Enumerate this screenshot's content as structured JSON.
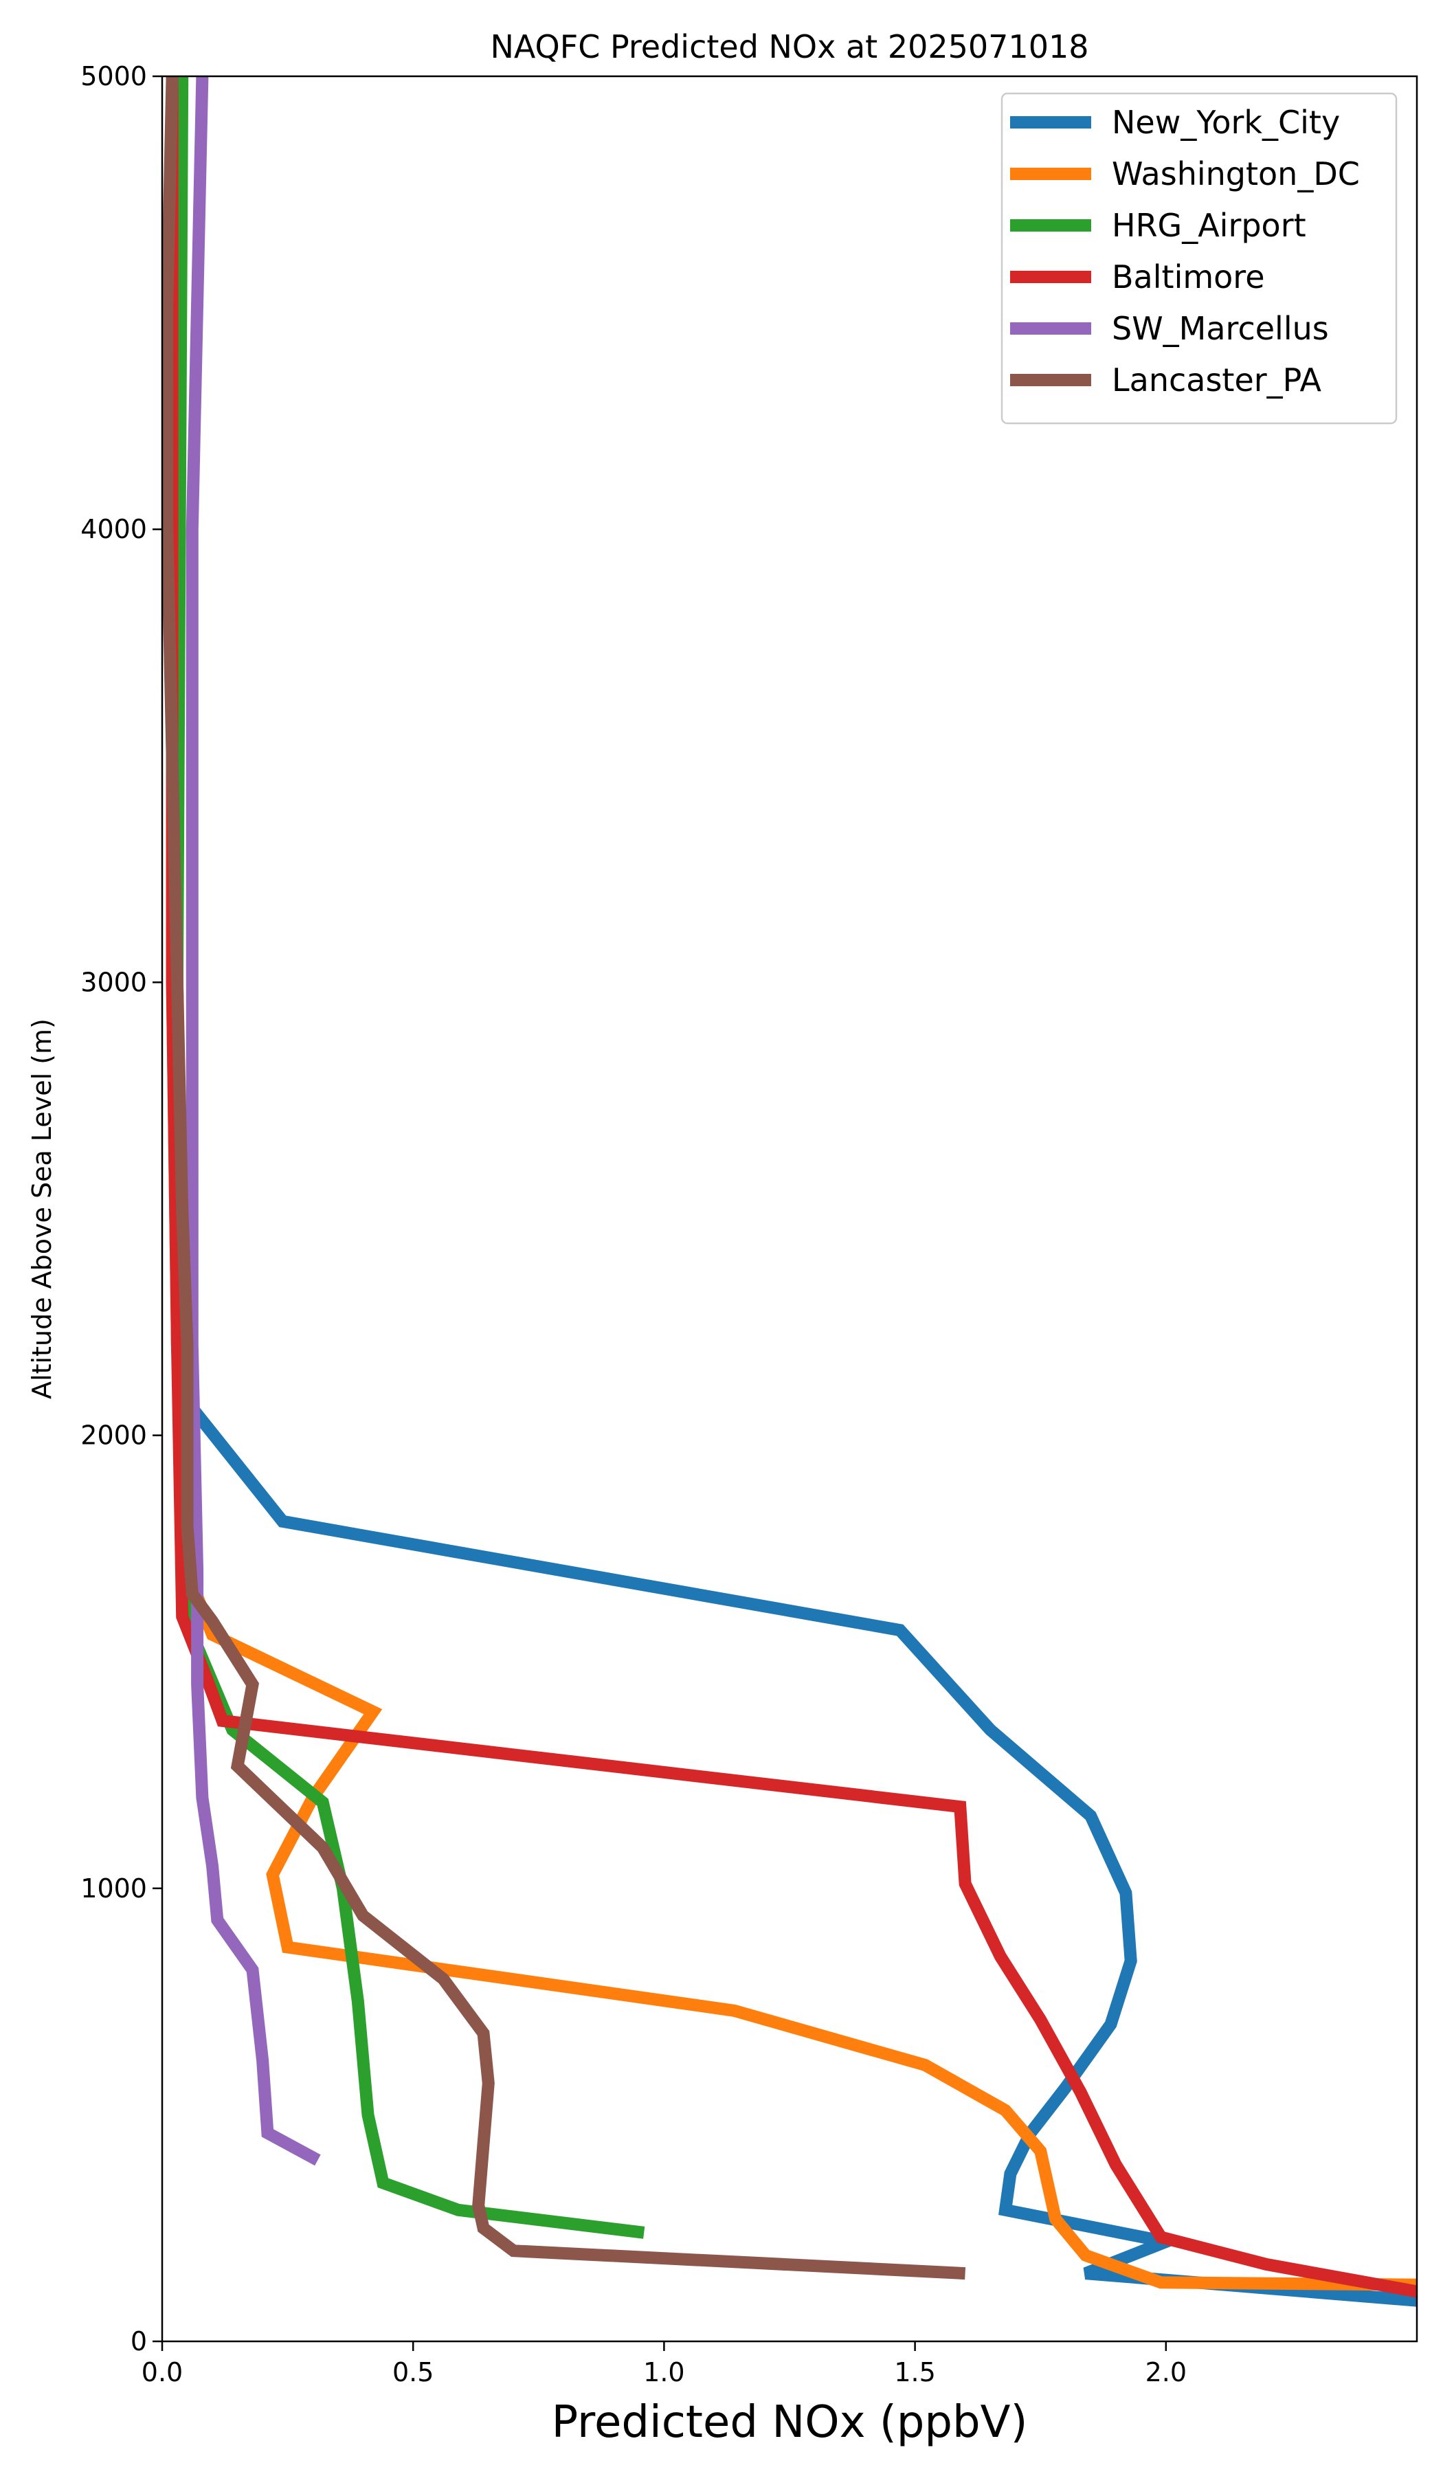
{
  "chart_data": {
    "type": "line",
    "title": "NAQFC Predicted NOx at 2025071018",
    "xlabel": "Predicted NOx (ppbV)",
    "ylabel": "Altitude Above Sea Level (m)",
    "xlim": [
      0,
      2.5
    ],
    "ylim": [
      0,
      5000
    ],
    "xticks": [
      0,
      0.5,
      1.0,
      1.5,
      2.0
    ],
    "xtick_labels": [
      "0.0",
      "0.5",
      "1.0",
      "1.5",
      "2.0"
    ],
    "yticks": [
      0,
      1000,
      2000,
      3000,
      4000,
      5000
    ],
    "ytick_labels": [
      "0",
      "1000",
      "2000",
      "3000",
      "4000",
      "5000"
    ],
    "grid": false,
    "legend_position": "top-right",
    "series": [
      {
        "name": "New_York_City",
        "color": "#1f77b4",
        "points": [
          [
            0.03,
            5000
          ],
          [
            0.03,
            3000
          ],
          [
            0.04,
            2200
          ],
          [
            0.06,
            2060
          ],
          [
            0.24,
            1810
          ],
          [
            1.47,
            1570
          ],
          [
            1.65,
            1350
          ],
          [
            1.85,
            1160
          ],
          [
            1.92,
            990
          ],
          [
            1.93,
            840
          ],
          [
            1.89,
            700
          ],
          [
            1.8,
            560
          ],
          [
            1.73,
            460
          ],
          [
            1.69,
            370
          ],
          [
            1.68,
            290
          ],
          [
            2.0,
            220
          ],
          [
            1.84,
            150
          ],
          [
            2.5,
            90
          ]
        ]
      },
      {
        "name": "Washington_DC",
        "color": "#ff7f0e",
        "points": [
          [
            0.02,
            5000
          ],
          [
            0.02,
            3000
          ],
          [
            0.03,
            2200
          ],
          [
            0.05,
            1700
          ],
          [
            0.1,
            1560
          ],
          [
            0.42,
            1390
          ],
          [
            0.3,
            1200
          ],
          [
            0.22,
            1030
          ],
          [
            0.25,
            870
          ],
          [
            1.14,
            730
          ],
          [
            1.52,
            610
          ],
          [
            1.68,
            510
          ],
          [
            1.75,
            420
          ],
          [
            1.78,
            270
          ],
          [
            1.84,
            190
          ],
          [
            1.99,
            130
          ],
          [
            2.5,
            125
          ]
        ]
      },
      {
        "name": "HRG_Airport",
        "color": "#2ca02c",
        "points": [
          [
            0.04,
            5000
          ],
          [
            0.03,
            3000
          ],
          [
            0.03,
            2200
          ],
          [
            0.05,
            1700
          ],
          [
            0.06,
            1560
          ],
          [
            0.14,
            1350
          ],
          [
            0.32,
            1190
          ],
          [
            0.36,
            1000
          ],
          [
            0.39,
            750
          ],
          [
            0.41,
            500
          ],
          [
            0.44,
            350
          ],
          [
            0.59,
            290
          ],
          [
            0.96,
            240
          ]
        ]
      },
      {
        "name": "Baltimore",
        "color": "#d62728",
        "points": [
          [
            0.02,
            5000
          ],
          [
            0.02,
            3000
          ],
          [
            0.03,
            2200
          ],
          [
            0.04,
            1600
          ],
          [
            0.09,
            1460
          ],
          [
            0.12,
            1370
          ],
          [
            1.59,
            1180
          ],
          [
            1.6,
            1010
          ],
          [
            1.67,
            850
          ],
          [
            1.75,
            710
          ],
          [
            1.83,
            550
          ],
          [
            1.9,
            390
          ],
          [
            1.99,
            230
          ],
          [
            2.2,
            170
          ],
          [
            2.5,
            110
          ]
        ]
      },
      {
        "name": "SW_Marcellus",
        "color": "#9467bd",
        "points": [
          [
            0.08,
            5000
          ],
          [
            0.07,
            4500
          ],
          [
            0.06,
            4000
          ],
          [
            0.06,
            3500
          ],
          [
            0.06,
            3000
          ],
          [
            0.06,
            2600
          ],
          [
            0.06,
            2200
          ],
          [
            0.07,
            1700
          ],
          [
            0.07,
            1450
          ],
          [
            0.08,
            1200
          ],
          [
            0.1,
            1050
          ],
          [
            0.11,
            930
          ],
          [
            0.18,
            820
          ],
          [
            0.2,
            620
          ],
          [
            0.21,
            460
          ],
          [
            0.31,
            400
          ]
        ]
      },
      {
        "name": "Lancaster_PA",
        "color": "#8c564b",
        "points": [
          [
            0.02,
            5000
          ],
          [
            0.01,
            4500
          ],
          [
            0.01,
            4000
          ],
          [
            0.02,
            3500
          ],
          [
            0.03,
            3000
          ],
          [
            0.04,
            2500
          ],
          [
            0.05,
            2200
          ],
          [
            0.05,
            1800
          ],
          [
            0.06,
            1650
          ],
          [
            0.1,
            1590
          ],
          [
            0.18,
            1450
          ],
          [
            0.15,
            1270
          ],
          [
            0.32,
            1090
          ],
          [
            0.4,
            940
          ],
          [
            0.56,
            800
          ],
          [
            0.64,
            680
          ],
          [
            0.65,
            570
          ],
          [
            0.63,
            300
          ],
          [
            0.64,
            250
          ],
          [
            0.7,
            200
          ],
          [
            1.6,
            150
          ]
        ]
      }
    ]
  }
}
